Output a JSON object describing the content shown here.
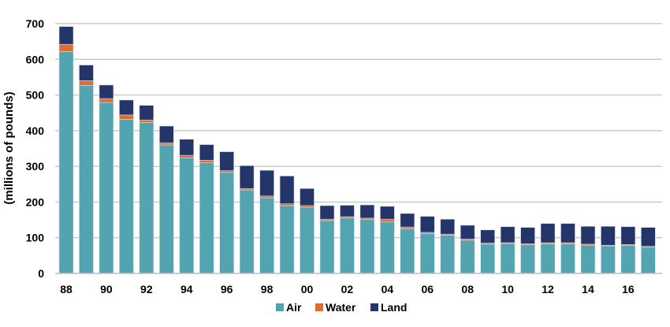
{
  "chart_data": {
    "type": "bar",
    "stacked": true,
    "title": "",
    "xlabel": "",
    "ylabel": "(millions of pounds)",
    "ylim": [
      0,
      700
    ],
    "yticks": [
      0,
      100,
      200,
      300,
      400,
      500,
      600,
      700
    ],
    "grid": true,
    "legend_position": "bottom",
    "categories": [
      "88",
      "89",
      "90",
      "91",
      "92",
      "93",
      "94",
      "95",
      "96",
      "97",
      "98",
      "99",
      "00",
      "01",
      "02",
      "03",
      "04",
      "05",
      "06",
      "07",
      "08",
      "09",
      "10",
      "11",
      "12",
      "13",
      "14",
      "15",
      "16",
      "17"
    ],
    "xtick_labels": [
      "88",
      "90",
      "92",
      "94",
      "96",
      "98",
      "00",
      "02",
      "04",
      "06",
      "08",
      "10",
      "12",
      "14",
      "16"
    ],
    "series": [
      {
        "name": "Air",
        "color": "#52A4B0",
        "values": [
          622,
          527,
          479,
          432,
          423,
          360,
          324,
          310,
          283,
          234,
          212,
          190,
          185,
          148,
          155,
          151,
          144,
          125,
          112,
          107,
          93,
          82,
          84,
          80,
          83,
          83,
          79,
          77,
          78,
          73
        ]
      },
      {
        "name": "Water",
        "color": "#E06C32",
        "values": [
          20,
          13,
          11,
          12,
          7,
          6,
          7,
          7,
          5,
          4,
          5,
          5,
          5,
          4,
          4,
          4,
          8,
          5,
          3,
          3,
          3,
          3,
          2,
          3,
          3,
          3,
          3,
          2,
          3,
          3
        ]
      },
      {
        "name": "Land",
        "color": "#243669",
        "values": [
          50,
          44,
          38,
          42,
          41,
          47,
          45,
          44,
          53,
          64,
          72,
          78,
          48,
          38,
          32,
          37,
          36,
          38,
          45,
          42,
          39,
          37,
          45,
          46,
          54,
          54,
          50,
          53,
          50,
          53
        ]
      }
    ]
  }
}
